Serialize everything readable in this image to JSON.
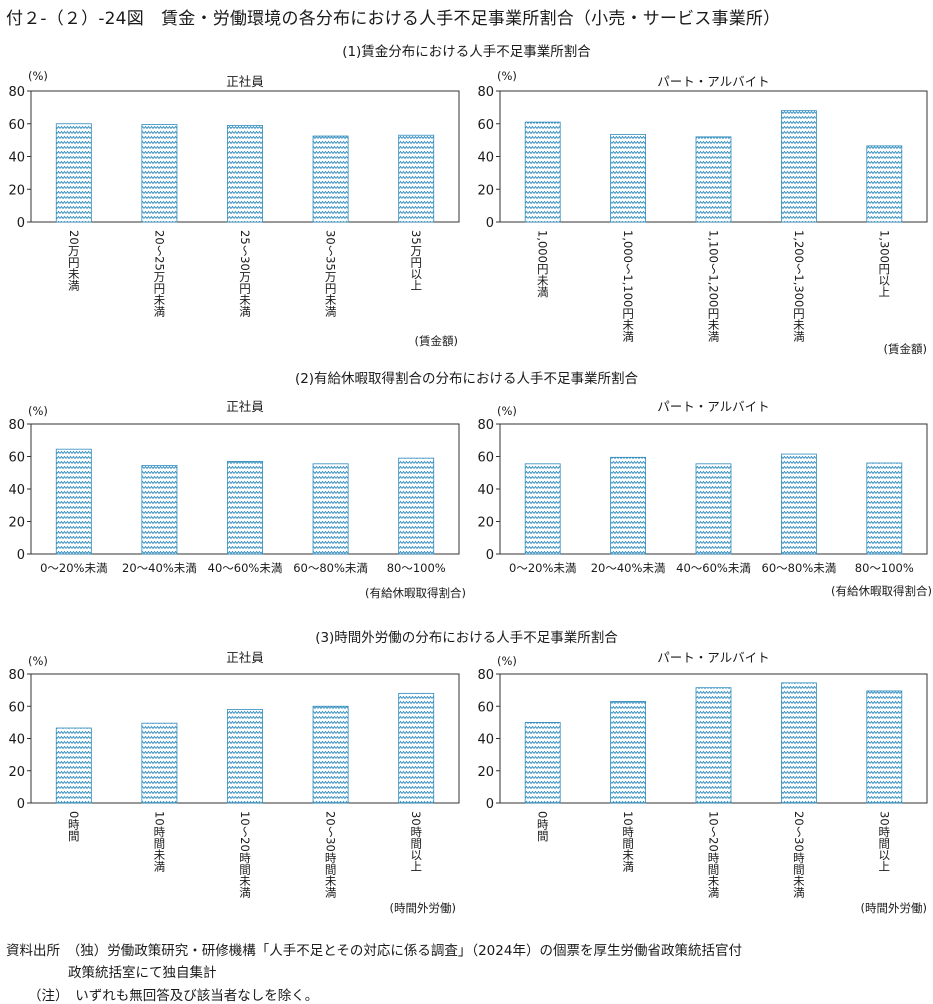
{
  "page": {
    "title": "付２-（２）-24図　賃金・労働環境の各分布における人手不足事業所割合（小売・サービス事業所）"
  },
  "sections": [
    {
      "title": "(1)賃金分布における人手不足事業所割合"
    },
    {
      "title": "(2)有給休暇取得割合の分布における人手不足事業所割合"
    },
    {
      "title": "(3)時間外労働の分布における人手不足事業所割合"
    }
  ],
  "colors": {
    "bar_line": "#2e8bbd",
    "bar_fill": "#ffffff",
    "axis": "#333333"
  },
  "chart_data": [
    {
      "type": "bar",
      "title": "正社員",
      "ylabel": "(%)",
      "xlabel": "(賃金額)",
      "ylim": [
        0,
        80
      ],
      "yticks": [
        0,
        20,
        40,
        60,
        80
      ],
      "label_orientation": "vertical",
      "categories": [
        "20万円未満",
        "20～25万円未満",
        "25～30万円未満",
        "30～35万円未満",
        "35万円以上"
      ],
      "values": [
        60,
        59.5,
        59,
        52.5,
        53
      ]
    },
    {
      "type": "bar",
      "title": "パート・アルバイト",
      "ylabel": "(%)",
      "xlabel": "(賃金額)",
      "ylim": [
        0,
        80
      ],
      "yticks": [
        0,
        20,
        40,
        60,
        80
      ],
      "label_orientation": "vertical",
      "categories": [
        "1,000円未満",
        "1,000～1,100円未満",
        "1,100～1,200円未満",
        "1,200～1,300円未満",
        "1,300円以上"
      ],
      "values": [
        61,
        53.5,
        52,
        68,
        46.5
      ]
    },
    {
      "type": "bar",
      "title": "正社員",
      "ylabel": "(%)",
      "xlabel": "(有給休暇取得割合)",
      "ylim": [
        0,
        80
      ],
      "yticks": [
        0,
        20,
        40,
        60,
        80
      ],
      "label_orientation": "horizontal",
      "categories": [
        "0～20%未満",
        "20～40%未満",
        "40～60%未満",
        "60～80%未満",
        "80～100%"
      ],
      "values": [
        64.5,
        54.5,
        57,
        55.5,
        59
      ]
    },
    {
      "type": "bar",
      "title": "パート・アルバイト",
      "ylabel": "(%)",
      "xlabel": "(有給休暇取得割合)",
      "ylim": [
        0,
        80
      ],
      "yticks": [
        0,
        20,
        40,
        60,
        80
      ],
      "label_orientation": "horizontal",
      "categories": [
        "0～20%未満",
        "20～40%未満",
        "40～60%未満",
        "60～80%未満",
        "80～100%"
      ],
      "values": [
        55.5,
        59.5,
        55.5,
        61.5,
        56
      ]
    },
    {
      "type": "bar",
      "title": "正社員",
      "ylabel": "(%)",
      "xlabel": "(時間外労働)",
      "ylim": [
        0,
        80
      ],
      "yticks": [
        0,
        20,
        40,
        60,
        80
      ],
      "label_orientation": "vertical",
      "categories": [
        "0時間",
        "10時間未満",
        "10～20時間未満",
        "20～30時間未満",
        "30時間以上"
      ],
      "values": [
        46.5,
        49.5,
        58,
        60,
        68
      ]
    },
    {
      "type": "bar",
      "title": "パート・アルバイト",
      "ylabel": "(%)",
      "xlabel": "(時間外労働)",
      "ylim": [
        0,
        80
      ],
      "yticks": [
        0,
        20,
        40,
        60,
        80
      ],
      "label_orientation": "vertical",
      "categories": [
        "0時間",
        "10時間未満",
        "10～20時間未満",
        "20～30時間未満",
        "30時間以上"
      ],
      "values": [
        50,
        63,
        71.5,
        74.5,
        69.5
      ]
    }
  ],
  "footer": {
    "source_line1": "資料出所　（独）労働政策研究・研修機構「人手不足とその対応に係る調査」（2024年）の個票を厚生労働省政策統括官付",
    "source_line2": "政策統括室にて独自集計",
    "note": "（注）　いずれも無回答及び該当者なしを除く。"
  }
}
